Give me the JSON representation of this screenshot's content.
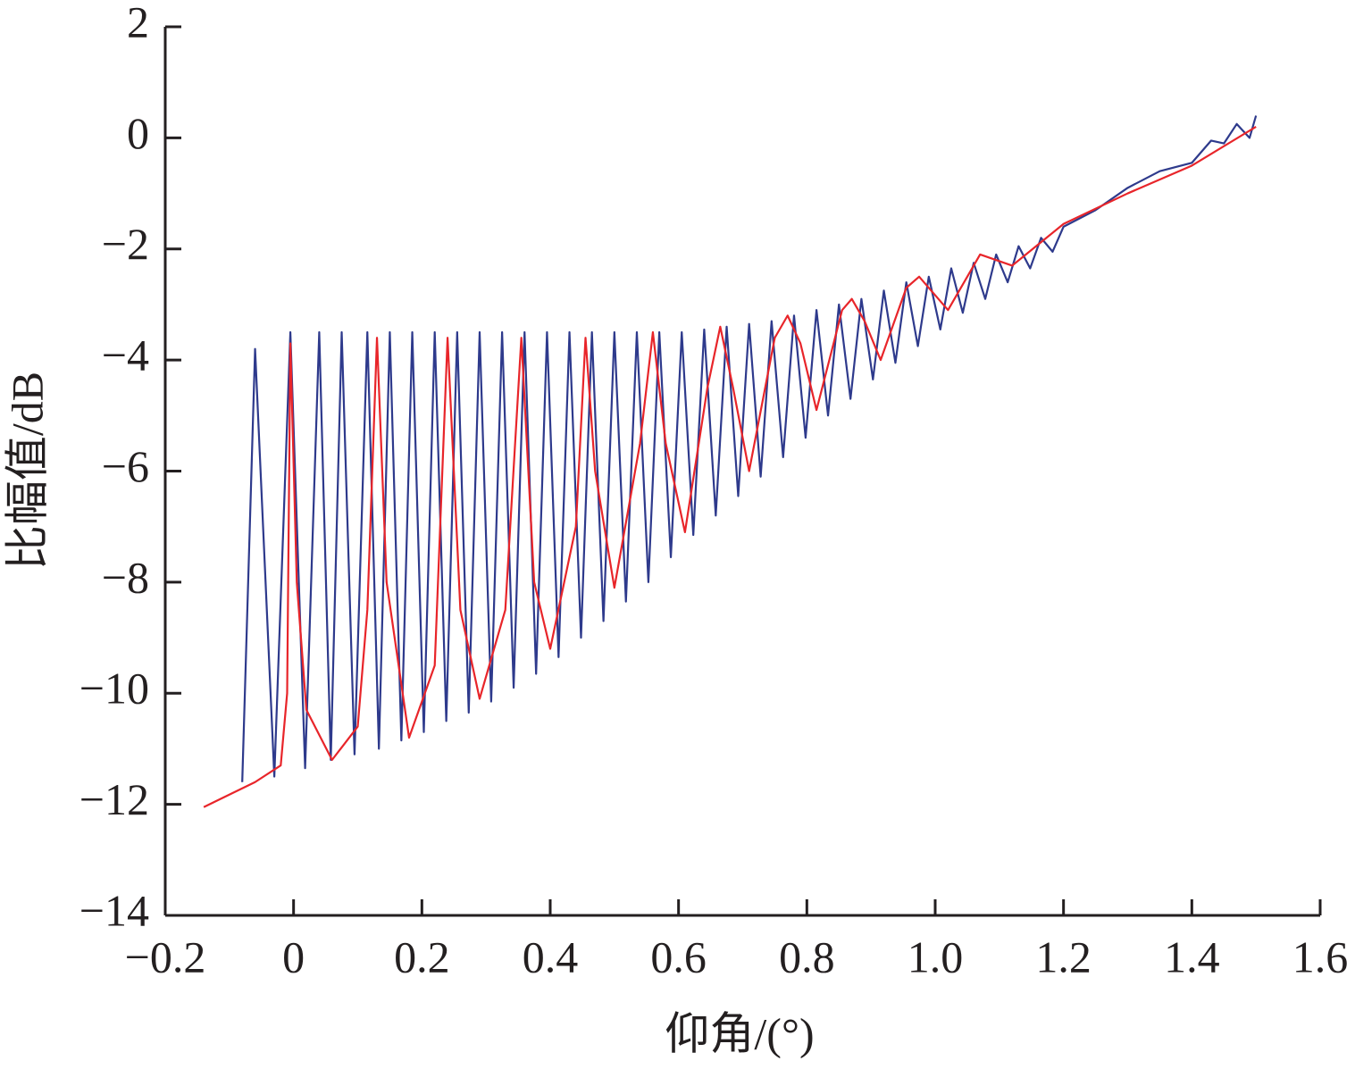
{
  "chart_data": {
    "type": "line",
    "x_label": "仰角/(°)",
    "y_label": "比幅值/dB",
    "xlim": [
      -0.2,
      1.6
    ],
    "ylim": [
      -14,
      2
    ],
    "xticks": [
      {
        "value": -0.2,
        "label": "−0.2"
      },
      0,
      0.2,
      0.4,
      0.6,
      0.8,
      {
        "value": 1,
        "label": "1.0"
      },
      1.2,
      1.4,
      1.6
    ],
    "yticks": [
      {
        "value": -14,
        "label": "−14"
      },
      {
        "value": -12,
        "label": "−12"
      },
      {
        "value": -10,
        "label": "−10"
      },
      {
        "value": -8,
        "label": "−8"
      },
      {
        "value": -6,
        "label": "−6"
      },
      {
        "value": -4,
        "label": "−4"
      },
      {
        "value": -2,
        "label": "−2"
      },
      0,
      2
    ],
    "grid": false,
    "series": [
      {
        "color": "#2e3a8c",
        "x": [
          -0.08,
          -0.06,
          -0.03,
          -0.005,
          0.018,
          0.04,
          0.058,
          0.075,
          0.095,
          0.115,
          0.133,
          0.15,
          0.168,
          0.185,
          0.203,
          0.22,
          0.238,
          0.255,
          0.273,
          0.29,
          0.308,
          0.325,
          0.343,
          0.36,
          0.378,
          0.395,
          0.413,
          0.43,
          0.448,
          0.465,
          0.483,
          0.5,
          0.518,
          0.535,
          0.553,
          0.57,
          0.588,
          0.605,
          0.623,
          0.64,
          0.658,
          0.675,
          0.693,
          0.71,
          0.728,
          0.745,
          0.763,
          0.78,
          0.798,
          0.815,
          0.833,
          0.85,
          0.868,
          0.885,
          0.903,
          0.92,
          0.938,
          0.955,
          0.973,
          0.99,
          1.008,
          1.025,
          1.043,
          1.06,
          1.078,
          1.095,
          1.113,
          1.13,
          1.148,
          1.165,
          1.183,
          1.2,
          1.25,
          1.3,
          1.35,
          1.4,
          1.43,
          1.45,
          1.47,
          1.49,
          1.5
        ],
        "values": [
          -11.6,
          -3.8,
          -11.5,
          -3.5,
          -11.35,
          -3.5,
          -11.2,
          -3.5,
          -11.1,
          -3.5,
          -11.0,
          -3.5,
          -10.85,
          -3.5,
          -10.7,
          -3.5,
          -10.5,
          -3.5,
          -10.35,
          -3.5,
          -10.15,
          -3.5,
          -9.9,
          -3.5,
          -9.65,
          -3.5,
          -9.35,
          -3.5,
          -9.0,
          -3.5,
          -8.7,
          -3.5,
          -8.35,
          -3.5,
          -8.0,
          -3.5,
          -7.55,
          -3.5,
          -7.15,
          -3.45,
          -6.8,
          -3.4,
          -6.45,
          -3.35,
          -6.1,
          -3.3,
          -5.75,
          -3.2,
          -5.4,
          -3.1,
          -5.0,
          -3.0,
          -4.7,
          -2.9,
          -4.35,
          -2.75,
          -4.05,
          -2.6,
          -3.75,
          -2.5,
          -3.45,
          -2.35,
          -3.15,
          -2.25,
          -2.9,
          -2.1,
          -2.6,
          -1.95,
          -2.35,
          -1.8,
          -2.05,
          -1.6,
          -1.3,
          -0.9,
          -0.6,
          -0.45,
          -0.05,
          -0.1,
          0.25,
          0.0,
          0.4
        ]
      },
      {
        "color": "#e8252a",
        "x": [
          -0.14,
          -0.06,
          -0.02,
          -0.01,
          -0.005,
          0.005,
          0.02,
          0.06,
          0.1,
          0.115,
          0.13,
          0.145,
          0.18,
          0.22,
          0.24,
          0.26,
          0.29,
          0.33,
          0.355,
          0.375,
          0.4,
          0.44,
          0.455,
          0.47,
          0.5,
          0.54,
          0.56,
          0.58,
          0.61,
          0.645,
          0.665,
          0.685,
          0.71,
          0.75,
          0.77,
          0.79,
          0.815,
          0.855,
          0.87,
          0.89,
          0.915,
          0.955,
          0.975,
          1.02,
          1.07,
          1.12,
          1.2,
          1.3,
          1.4,
          1.5
        ],
        "values": [
          -12.05,
          -11.6,
          -11.3,
          -10.0,
          -3.7,
          -8.0,
          -10.3,
          -11.2,
          -10.6,
          -8.5,
          -3.6,
          -8.0,
          -10.8,
          -9.5,
          -3.6,
          -8.5,
          -10.1,
          -8.5,
          -3.6,
          -8.0,
          -9.2,
          -7.0,
          -3.6,
          -6.0,
          -8.1,
          -5.5,
          -3.5,
          -5.5,
          -7.1,
          -4.5,
          -3.4,
          -4.5,
          -6.0,
          -3.6,
          -3.2,
          -3.7,
          -4.9,
          -3.1,
          -2.9,
          -3.3,
          -4.0,
          -2.7,
          -2.5,
          -3.1,
          -2.1,
          -2.3,
          -1.55,
          -1.0,
          -0.5,
          0.2
        ]
      }
    ]
  }
}
